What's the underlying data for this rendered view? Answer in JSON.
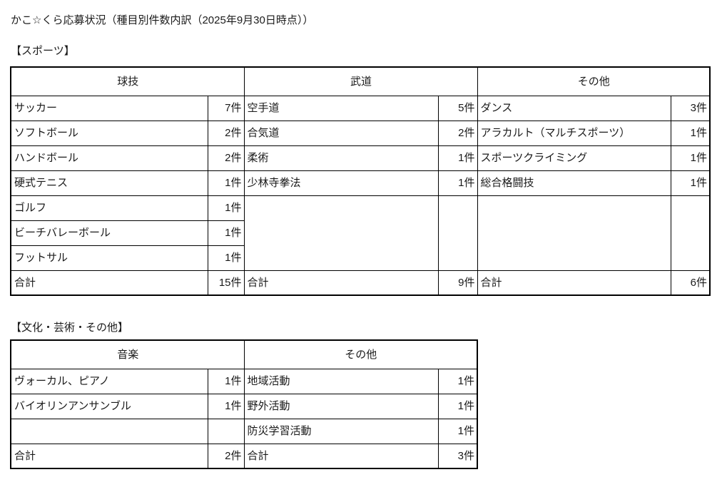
{
  "page": {
    "title": "かこ☆くら応募状況（種目別件数内訳（2025年9月30日時点））"
  },
  "sections": [
    {
      "label": "【スポーツ】",
      "groups": [
        {
          "header": "球技",
          "rows": [
            {
              "label": "サッカー",
              "count": "7件"
            },
            {
              "label": "ソフトボール",
              "count": "2件"
            },
            {
              "label": "ハンドボール",
              "count": "2件"
            },
            {
              "label": "硬式テニス",
              "count": "1件"
            },
            {
              "label": "ゴルフ",
              "count": "1件"
            },
            {
              "label": "ビーチバレーボール",
              "count": "1件"
            },
            {
              "label": "フットサル",
              "count": "1件"
            }
          ],
          "total": {
            "label": "合計",
            "count": "15件"
          }
        },
        {
          "header": "武道",
          "rows": [
            {
              "label": "空手道",
              "count": "5件"
            },
            {
              "label": "合気道",
              "count": "2件"
            },
            {
              "label": "柔術",
              "count": "1件"
            },
            {
              "label": "少林寺拳法",
              "count": "1件"
            }
          ],
          "total": {
            "label": "合計",
            "count": "9件"
          }
        },
        {
          "header": "その他",
          "rows": [
            {
              "label": "ダンス",
              "count": "3件"
            },
            {
              "label": "アラカルト（マルチスポーツ）",
              "count": "1件"
            },
            {
              "label": "スポーツクライミング",
              "count": "1件"
            },
            {
              "label": "総合格闘技",
              "count": "1件"
            }
          ],
          "total": {
            "label": "合計",
            "count": "6件"
          }
        }
      ]
    },
    {
      "label": "【文化・芸術・その他】",
      "groups": [
        {
          "header": "音楽",
          "rows": [
            {
              "label": "ヴォーカル、ピアノ",
              "count": "1件"
            },
            {
              "label": "バイオリンアンサンブル",
              "count": "1件"
            },
            {
              "label": "",
              "count": ""
            }
          ],
          "total": {
            "label": "合計",
            "count": "2件"
          }
        },
        {
          "header": "その他",
          "rows": [
            {
              "label": "地域活動",
              "count": "1件"
            },
            {
              "label": "野外活動",
              "count": "1件"
            },
            {
              "label": "防災学習活動",
              "count": "1件"
            }
          ],
          "total": {
            "label": "合計",
            "count": "3件"
          }
        }
      ]
    }
  ]
}
